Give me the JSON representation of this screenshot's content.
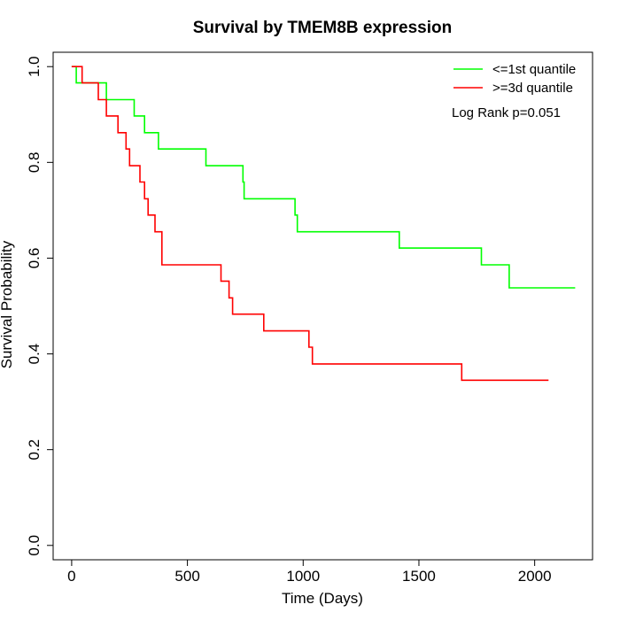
{
  "chart_data": {
    "type": "line",
    "title": "Survival by TMEM8B expression",
    "xlabel": "Time (Days)",
    "ylabel": "Survival Probability",
    "xlim": [
      -80,
      2250
    ],
    "ylim": [
      -0.03,
      1.03
    ],
    "xticks": [
      0,
      500,
      1000,
      1500,
      2000
    ],
    "xtick_labels": [
      "0",
      "500",
      "1000",
      "1500",
      "2000"
    ],
    "yticks": [
      0.0,
      0.2,
      0.4,
      0.6,
      0.8,
      1.0
    ],
    "ytick_labels": [
      "0.0",
      "0.2",
      "0.4",
      "0.6",
      "0.8",
      "1.0"
    ],
    "grid": false,
    "legend_position": "top-right",
    "annotation": "Log Rank p=0.051",
    "series": [
      {
        "name": "<=1st quantile",
        "color": "#00ff00",
        "steps": [
          [
            0,
            1.0
          ],
          [
            20,
            0.966
          ],
          [
            150,
            0.931
          ],
          [
            270,
            0.897
          ],
          [
            315,
            0.862
          ],
          [
            375,
            0.828
          ],
          [
            580,
            0.793
          ],
          [
            740,
            0.759
          ],
          [
            745,
            0.724
          ],
          [
            965,
            0.69
          ],
          [
            975,
            0.655
          ],
          [
            1415,
            0.621
          ],
          [
            1770,
            0.586
          ],
          [
            1890,
            0.538
          ],
          [
            2175,
            0.538
          ]
        ]
      },
      {
        "name": ">=3d quantile",
        "color": "#ff0000",
        "steps": [
          [
            0,
            1.0
          ],
          [
            45,
            0.966
          ],
          [
            115,
            0.931
          ],
          [
            150,
            0.897
          ],
          [
            200,
            0.862
          ],
          [
            235,
            0.828
          ],
          [
            250,
            0.793
          ],
          [
            295,
            0.759
          ],
          [
            315,
            0.724
          ],
          [
            330,
            0.69
          ],
          [
            360,
            0.655
          ],
          [
            390,
            0.586
          ],
          [
            645,
            0.552
          ],
          [
            680,
            0.517
          ],
          [
            695,
            0.483
          ],
          [
            830,
            0.448
          ],
          [
            1025,
            0.414
          ],
          [
            1040,
            0.379
          ],
          [
            1685,
            0.345
          ],
          [
            2060,
            0.345
          ]
        ]
      }
    ]
  }
}
